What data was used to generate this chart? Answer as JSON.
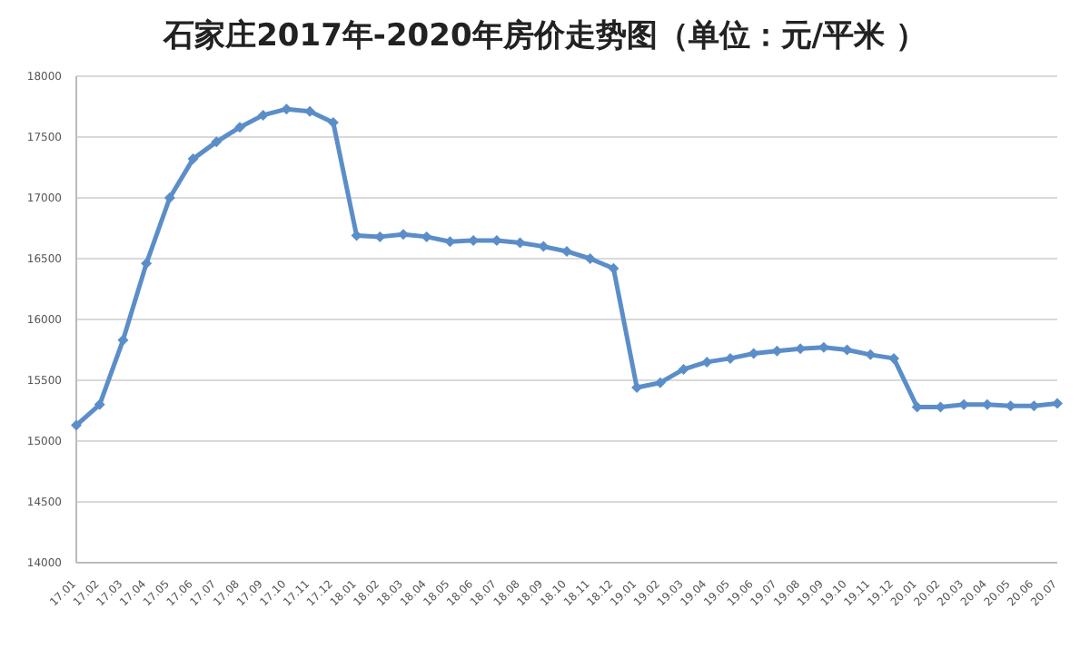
{
  "chart_data": {
    "type": "line",
    "title": "石家庄2017年-2020年房价走势图（单位：元/平米 ）",
    "categories": [
      "17.01",
      "17.02",
      "17.03",
      "17.04",
      "17.05",
      "17.06",
      "17.07",
      "17.08",
      "17.09",
      "17.10",
      "17.11",
      "17.12",
      "18.01",
      "18.02",
      "18.03",
      "18.04",
      "18.05",
      "18.06",
      "18.07",
      "18.08",
      "18.09",
      "18.10",
      "18.11",
      "18.12",
      "19.01",
      "19.02",
      "19.03",
      "19.04",
      "19.05",
      "19.06",
      "19.07",
      "19.08",
      "19.09",
      "19.10",
      "19.11",
      "19.12",
      "20.01",
      "20.02",
      "20.03",
      "20.04",
      "20.05",
      "20.06",
      "20.07"
    ],
    "series": [
      {
        "color": "#5b8ec9",
        "values": [
          15130,
          15300,
          15830,
          16460,
          17000,
          17320,
          17460,
          17580,
          17680,
          17730,
          17710,
          17620,
          16690,
          16680,
          16700,
          16680,
          16640,
          16650,
          16650,
          16630,
          16600,
          16560,
          16500,
          16420,
          15440,
          15480,
          15590,
          15650,
          15680,
          15720,
          15740,
          15760,
          15770,
          15750,
          15710,
          15680,
          15280,
          15280,
          15300,
          15300,
          15290,
          15290,
          15310
        ]
      }
    ],
    "ylim": [
      14000,
      18000
    ],
    "yticks": [
      14000,
      14500,
      15000,
      15500,
      16000,
      16500,
      17000,
      17500,
      18000
    ],
    "grid": "y",
    "marker": "diamond",
    "line_style": "solid"
  }
}
